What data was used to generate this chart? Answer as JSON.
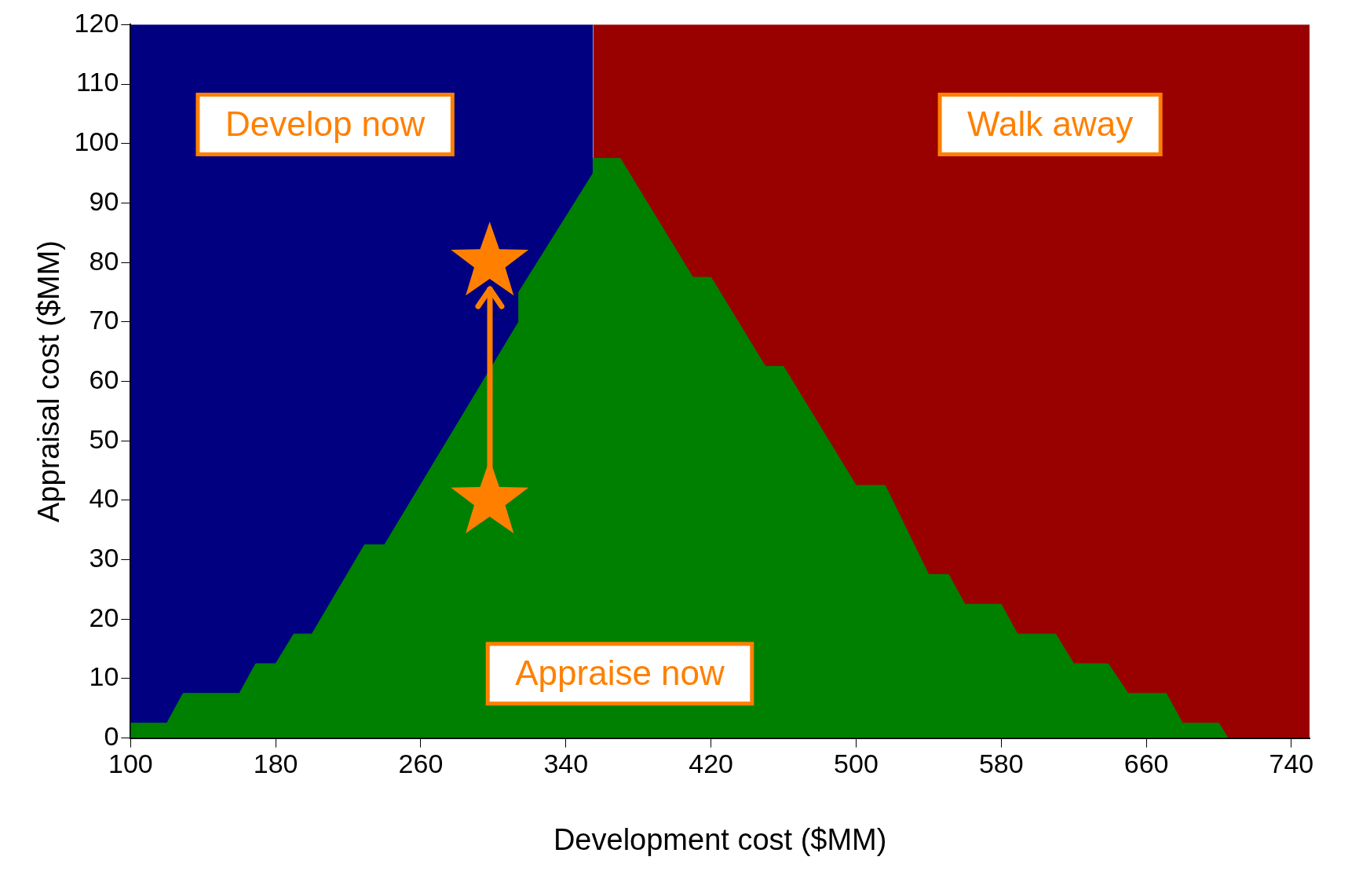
{
  "chart_data": {
    "type": "area",
    "xlabel": "Development cost ($MM)",
    "ylabel": "Appraisal cost ($MM)",
    "xlim": [
      100,
      750
    ],
    "xticks": [
      100,
      180,
      260,
      340,
      420,
      500,
      580,
      660,
      740
    ],
    "ylim": [
      0,
      120
    ],
    "yticks": [
      0,
      10,
      20,
      30,
      40,
      50,
      60,
      70,
      80,
      90,
      100,
      110,
      120
    ],
    "grid": false,
    "legend": false,
    "series": [
      {
        "color": "#000080",
        "x": [
          100,
          355
        ],
        "values": [
          120,
          120
        ]
      },
      {
        "color": "#990000",
        "x": [
          355,
          750
        ],
        "values": [
          120,
          120
        ]
      },
      {
        "color": "#008000",
        "x": [
          100,
          120,
          129,
          160,
          169,
          180,
          190,
          200,
          229,
          240,
          314,
          314,
          355,
          355,
          370,
          410,
          420,
          450,
          460,
          500,
          516,
          540,
          551,
          560,
          580,
          589,
          610,
          620,
          639,
          650,
          671,
          680,
          700,
          705
        ],
        "values": [
          2.5,
          2.5,
          7.5,
          7.5,
          12.5,
          12.5,
          17.5,
          17.5,
          32.5,
          32.5,
          70,
          75,
          95,
          97.5,
          97.5,
          77.5,
          77.5,
          62.5,
          62.5,
          42.5,
          42.5,
          27.5,
          27.5,
          22.5,
          22.5,
          17.5,
          17.5,
          12.5,
          12.5,
          7.5,
          7.5,
          2.5,
          2.5,
          0
        ]
      },
      {
        "type": "scatter",
        "color": "#ff8000",
        "marker": "star",
        "x": [
          298,
          298
        ],
        "values": [
          40,
          80
        ]
      }
    ],
    "annotations": [
      "Develop now",
      "Walk away",
      "Appraise now"
    ]
  }
}
